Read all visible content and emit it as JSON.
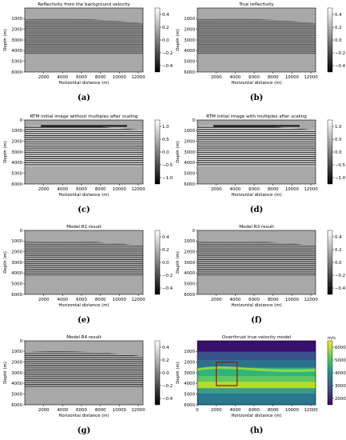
{
  "figure": {
    "panels": [
      {
        "id": "a",
        "title": "Reflectivity from the background velocity",
        "caption": "(a)",
        "xlabel": "Horizontal distance (m)",
        "ylabel": "Depth (m)",
        "xticks": [
          "2000",
          "4000",
          "6000",
          "8000",
          "10000",
          "12000"
        ],
        "yticks": [
          "1000",
          "2000",
          "3000",
          "4000",
          "5000",
          "6000"
        ],
        "cbar_ticks": [
          "0.4",
          "0.2",
          "0.0",
          "−0.2",
          "−0.4"
        ],
        "cbar_style": "gray",
        "image_style": "reflectivity-smooth"
      },
      {
        "id": "b",
        "title": "True reflectivity",
        "caption": "(b)",
        "xlabel": "Horizontal distance (m)",
        "ylabel": "Depth (m)",
        "xticks": [
          "2000",
          "4000",
          "6000",
          "8000",
          "10000",
          "12000"
        ],
        "yticks": [
          "1000",
          "2000",
          "3000",
          "4000",
          "5000",
          "6000"
        ],
        "cbar_ticks": [
          "0.4",
          "0.2",
          "0.0",
          "−0.2",
          "−0.4"
        ],
        "cbar_style": "gray",
        "image_style": "reflectivity-true"
      },
      {
        "id": "c",
        "title": "RTM initial image without multiples after scaling",
        "caption": "(c)",
        "xlabel": "Horizontal distance (m)",
        "ylabel": "Depth (m)",
        "xticks": [
          "2000",
          "4000",
          "6000",
          "8000",
          "10000",
          "12000"
        ],
        "yticks": [
          "0",
          "1000",
          "2000",
          "3000",
          "4000",
          "5000",
          "6000"
        ],
        "cbar_ticks": [
          "1.0",
          "0.5",
          "0.0",
          "−0.5",
          "−1.0"
        ],
        "cbar_style": "gray",
        "image_style": "rtm"
      },
      {
        "id": "d",
        "title": "RTM initial image with multiples after scaling",
        "caption": "(d)",
        "xlabel": "Horizontal distance (m)",
        "ylabel": "Depth (m)",
        "xticks": [
          "2000",
          "4000",
          "6000",
          "8000",
          "10000",
          "12000"
        ],
        "yticks": [
          "0",
          "1000",
          "2000",
          "3000",
          "4000",
          "5000",
          "6000"
        ],
        "cbar_ticks": [
          "1.0",
          "0.5",
          "0.0",
          "−0.5",
          "−1.0"
        ],
        "cbar_style": "gray",
        "image_style": "rtm-multiples"
      },
      {
        "id": "e",
        "title": "Model R1 result",
        "caption": "(e)",
        "xlabel": "Horizontal distance (m)",
        "ylabel": "Depth (m)",
        "xticks": [
          "2000",
          "4000",
          "6000",
          "8000",
          "10000",
          "12000"
        ],
        "yticks": [
          "0",
          "1000",
          "2000",
          "3000",
          "4000",
          "5000",
          "6000"
        ],
        "cbar_ticks": [
          "0.4",
          "0.2",
          "0.0",
          "−0.2",
          "−0.4"
        ],
        "cbar_style": "gray",
        "image_style": "result"
      },
      {
        "id": "f",
        "title": "Model R3 result",
        "caption": "(f)",
        "xlabel": "Horizontal distance (m)",
        "ylabel": "Depth (m)",
        "xticks": [
          "2000",
          "4000",
          "6000",
          "8000",
          "10000",
          "12000"
        ],
        "yticks": [
          "0",
          "1000",
          "2000",
          "3000",
          "4000",
          "5000",
          "6000"
        ],
        "cbar_ticks": [
          "0.4",
          "0.2",
          "0.0",
          "−0.2",
          "−0.4"
        ],
        "cbar_style": "gray",
        "image_style": "result"
      },
      {
        "id": "g",
        "title": "Model R4 result",
        "caption": "(g)",
        "xlabel": "Horizontal distance (m)",
        "ylabel": "Depth (m)",
        "xticks": [
          "2000",
          "4000",
          "6000",
          "8000",
          "10000",
          "12000"
        ],
        "yticks": [
          "0",
          "1000",
          "2000",
          "3000",
          "4000",
          "5000",
          "6000"
        ],
        "cbar_ticks": [
          "0.4",
          "0.2",
          "0.0",
          "−0.2",
          "−0.4"
        ],
        "cbar_style": "gray",
        "image_style": "result"
      },
      {
        "id": "h",
        "title": "Overthrust true velocity model",
        "caption": "(h)",
        "xlabel": "Horizontal distance (m)",
        "ylabel": "Depth (m)",
        "xticks": [
          "0",
          "2000",
          "4000",
          "6000",
          "8000",
          "10000",
          "12000"
        ],
        "yticks": [
          "1000",
          "2000",
          "3000",
          "4000",
          "5000",
          "6000"
        ],
        "cbar_ticks": [
          "6000",
          "5000",
          "4000",
          "3000",
          "2000"
        ],
        "cbar_label": "m/s",
        "cbar_style": "viridis",
        "image_style": "velocity",
        "highlight_box_color": "#8b2500"
      }
    ]
  },
  "chart_data": [
    {
      "type": "heatmap",
      "title": "Reflectivity from the background velocity",
      "xlabel": "Horizontal distance (m)",
      "ylabel": "Depth (m)",
      "xlim": [
        0,
        12500
      ],
      "ylim": [
        6000,
        0
      ],
      "colorbar_range": [
        -0.5,
        0.5
      ],
      "colormap": "gray"
    },
    {
      "type": "heatmap",
      "title": "True reflectivity",
      "xlabel": "Horizontal distance (m)",
      "ylabel": "Depth (m)",
      "xlim": [
        0,
        12500
      ],
      "ylim": [
        6000,
        0
      ],
      "colorbar_range": [
        -0.5,
        0.5
      ],
      "colormap": "gray"
    },
    {
      "type": "heatmap",
      "title": "RTM initial image without multiples after scaling",
      "xlabel": "Horizontal distance (m)",
      "ylabel": "Depth (m)",
      "xlim": [
        0,
        12500
      ],
      "ylim": [
        6000,
        0
      ],
      "colorbar_range": [
        -1.0,
        1.0
      ],
      "colormap": "gray"
    },
    {
      "type": "heatmap",
      "title": "RTM initial image with multiples after scaling",
      "xlabel": "Horizontal distance (m)",
      "ylabel": "Depth (m)",
      "xlim": [
        0,
        12500
      ],
      "ylim": [
        6000,
        0
      ],
      "colorbar_range": [
        -1.0,
        1.0
      ],
      "colormap": "gray"
    },
    {
      "type": "heatmap",
      "title": "Model R1 result",
      "xlabel": "Horizontal distance (m)",
      "ylabel": "Depth (m)",
      "xlim": [
        0,
        12500
      ],
      "ylim": [
        6000,
        0
      ],
      "colorbar_range": [
        -0.5,
        0.5
      ],
      "colormap": "gray"
    },
    {
      "type": "heatmap",
      "title": "Model R3 result",
      "xlabel": "Horizontal distance (m)",
      "ylabel": "Depth (m)",
      "xlim": [
        0,
        12500
      ],
      "ylim": [
        6000,
        0
      ],
      "colorbar_range": [
        -0.5,
        0.5
      ],
      "colormap": "gray"
    },
    {
      "type": "heatmap",
      "title": "Model R4 result",
      "xlabel": "Horizontal distance (m)",
      "ylabel": "Depth (m)",
      "xlim": [
        0,
        12500
      ],
      "ylim": [
        6000,
        0
      ],
      "colorbar_range": [
        -0.5,
        0.5
      ],
      "colormap": "gray"
    },
    {
      "type": "heatmap",
      "title": "Overthrust true velocity model",
      "xlabel": "Horizontal distance (m)",
      "ylabel": "Depth (m)",
      "xlim": [
        0,
        12500
      ],
      "ylim": [
        6000,
        0
      ],
      "colorbar_range": [
        2000,
        6000
      ],
      "colorbar_unit": "m/s",
      "colormap": "viridis",
      "highlight_box_x": [
        2000,
        4200
      ],
      "highlight_box_y": [
        2000,
        4200
      ]
    }
  ]
}
